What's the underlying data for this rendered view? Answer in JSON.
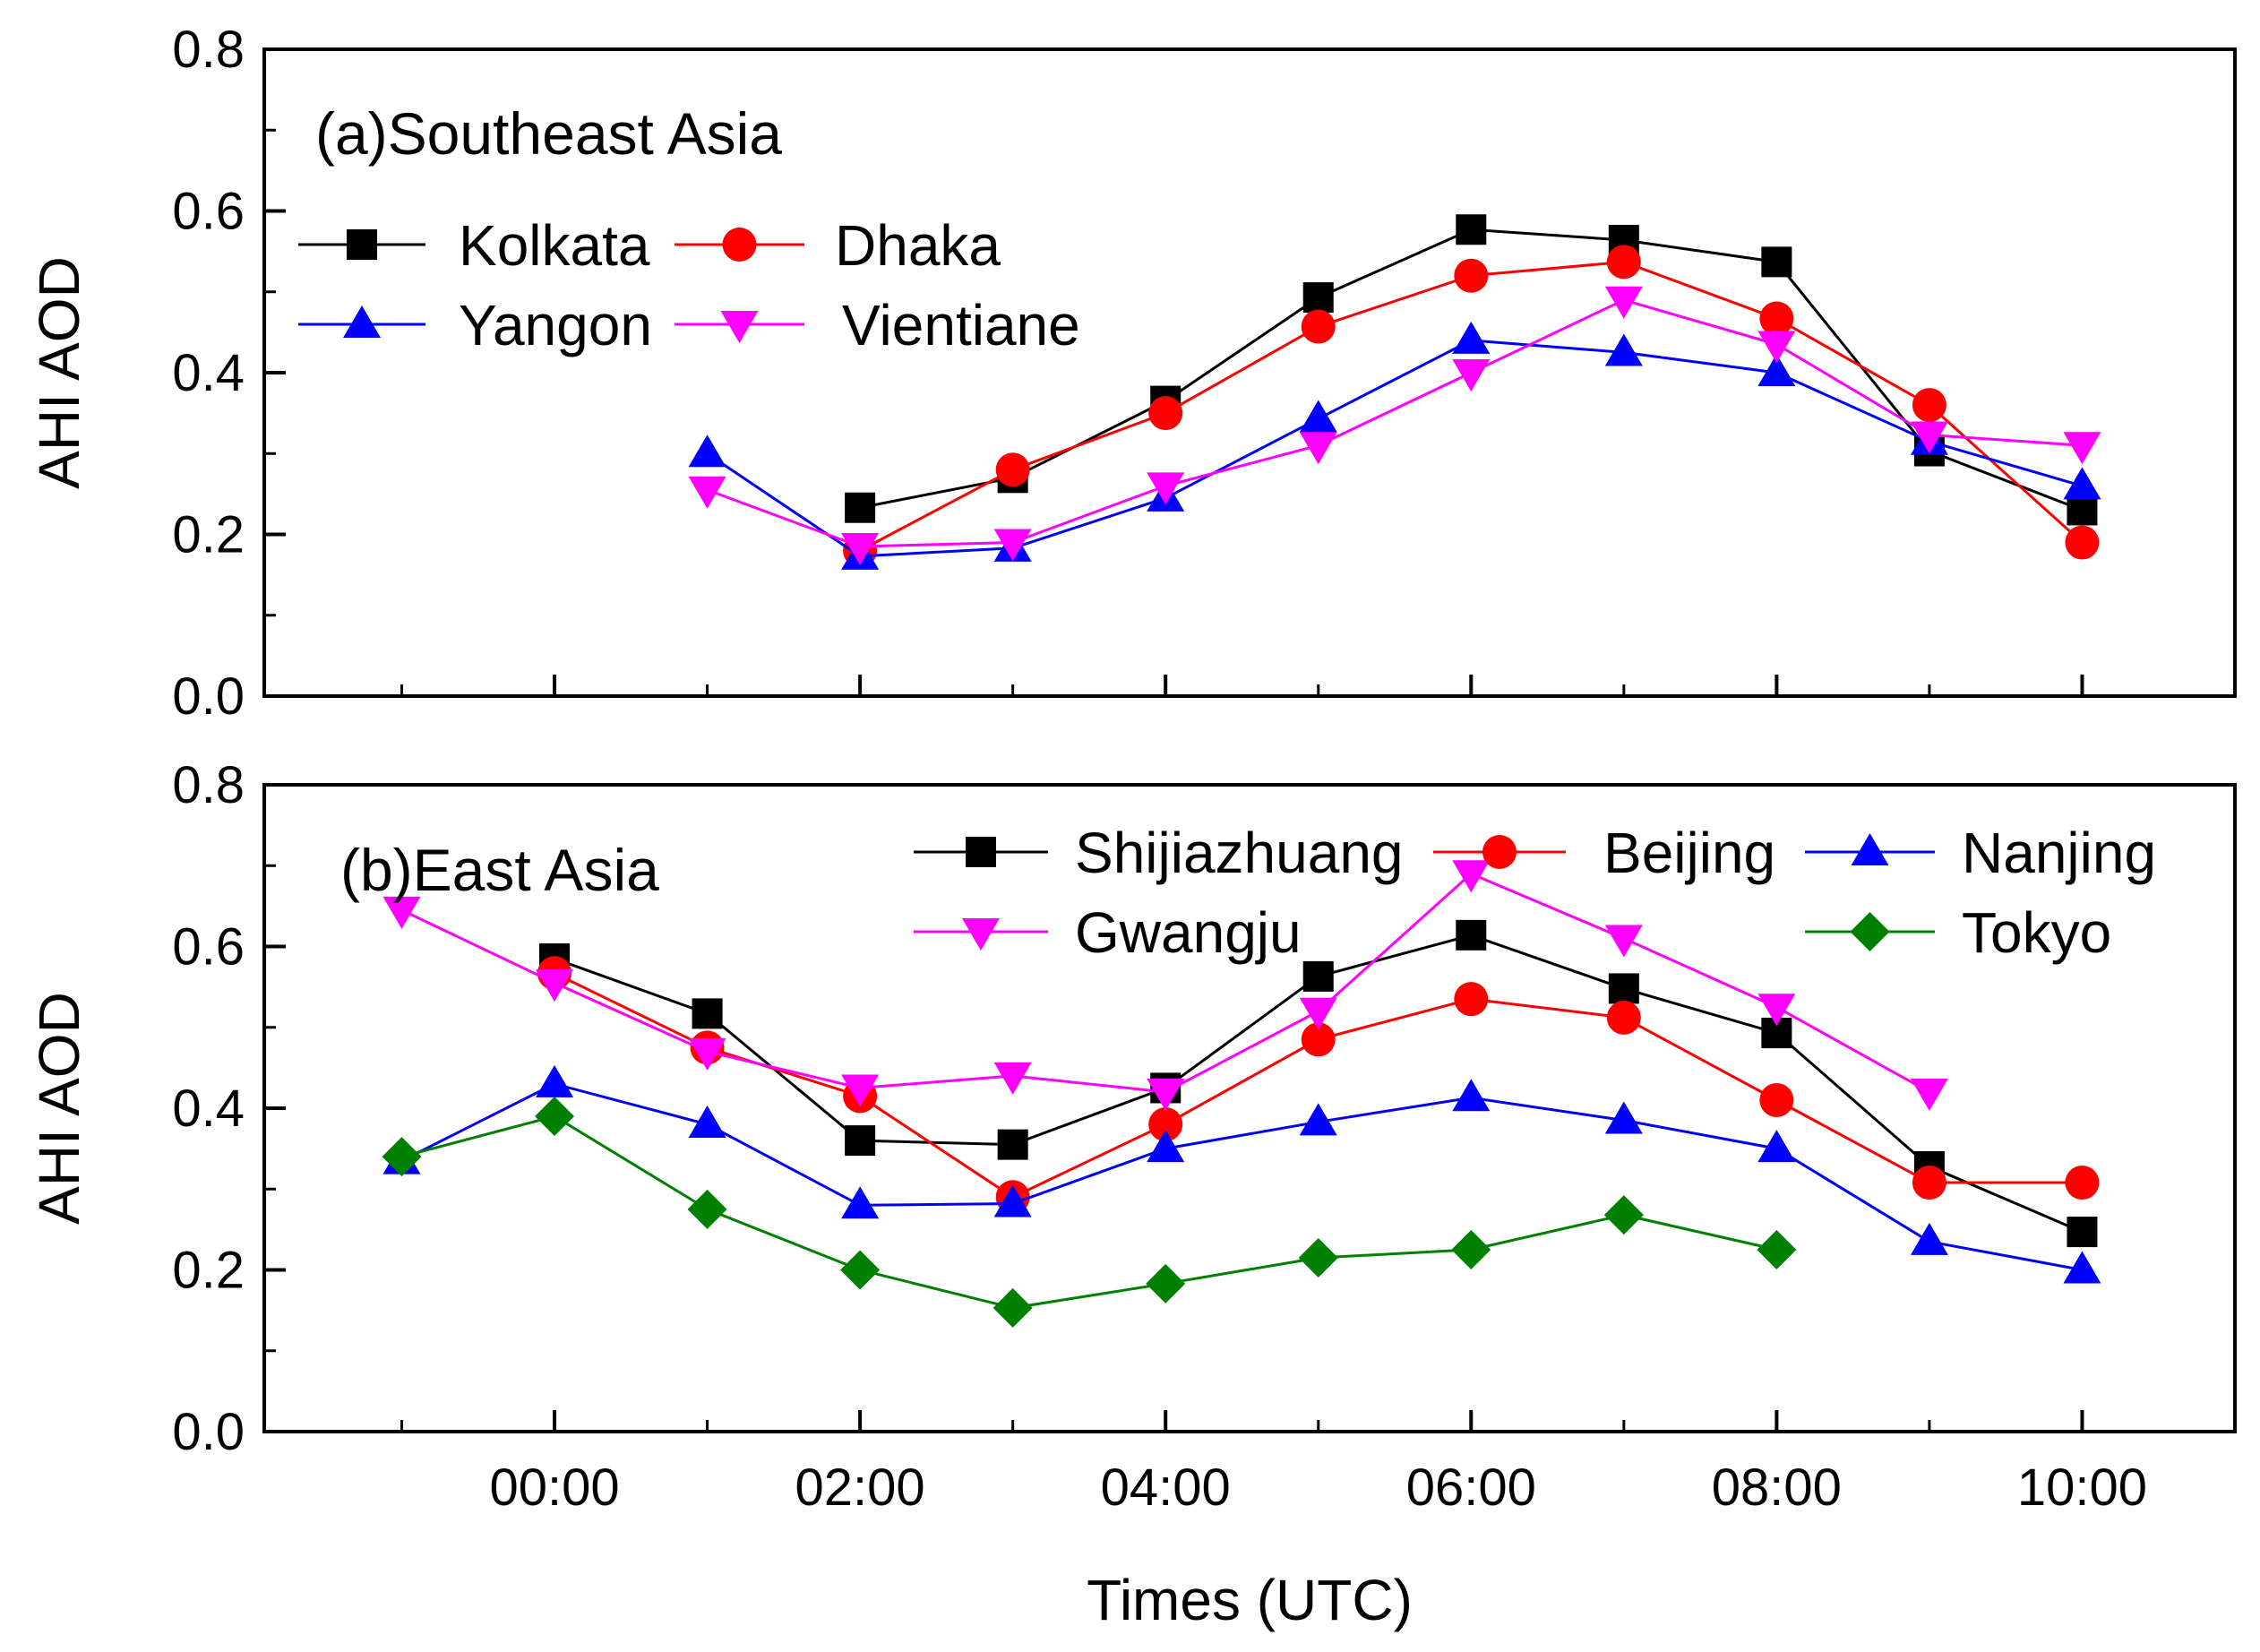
{
  "chart_data": [
    {
      "type": "line",
      "title": "(a)Southeast Asia",
      "xlabel": "",
      "ylabel": "AHI AOD",
      "xlim": [
        -1.9,
        11
      ],
      "ylim": [
        0.0,
        0.8
      ],
      "yticks": [
        0.0,
        0.2,
        0.4,
        0.6,
        0.8
      ],
      "ytick_labels": [
        "0.0",
        "0.2",
        "0.4",
        "0.6",
        "0.8"
      ],
      "legend_position": "top-left",
      "series": [
        {
          "name": "Kolkata",
          "color": "#000000",
          "marker": "square",
          "x": [
            2,
            3,
            4,
            5,
            6,
            7,
            8,
            9,
            10
          ],
          "values": [
            0.233,
            0.27,
            0.365,
            0.493,
            0.577,
            0.564,
            0.537,
            0.303,
            0.23
          ]
        },
        {
          "name": "Dhaka",
          "color": "#ff0000",
          "marker": "circle",
          "x": [
            2,
            3,
            4,
            5,
            6,
            7,
            8,
            9,
            10
          ],
          "values": [
            0.18,
            0.28,
            0.35,
            0.457,
            0.52,
            0.537,
            0.467,
            0.36,
            0.19
          ]
        },
        {
          "name": "Yangon",
          "color": "#0000ff",
          "marker": "triangle-up",
          "x": [
            1,
            2,
            3,
            4,
            5,
            6,
            7,
            8,
            9,
            10
          ],
          "values": [
            0.3,
            0.173,
            0.183,
            0.245,
            0.343,
            0.44,
            0.425,
            0.4,
            0.315,
            0.26
          ]
        },
        {
          "name": "Vientiane",
          "color": "#ff00ff",
          "marker": "triangle-down",
          "x": [
            1,
            2,
            3,
            4,
            5,
            6,
            7,
            8,
            9,
            10
          ],
          "values": [
            0.255,
            0.185,
            0.19,
            0.26,
            0.31,
            0.4,
            0.49,
            0.435,
            0.323,
            0.31
          ]
        }
      ]
    },
    {
      "type": "line",
      "title": "(b)East Asia",
      "xlabel": "Times (UTC)",
      "ylabel": "AHI AOD",
      "xlim": [
        -1.9,
        11
      ],
      "ylim": [
        0.0,
        0.8
      ],
      "yticks": [
        0.0,
        0.2,
        0.4,
        0.6,
        0.8
      ],
      "ytick_labels": [
        "0.0",
        "0.2",
        "0.4",
        "0.6",
        "0.8"
      ],
      "xticks": [
        0,
        2,
        4,
        6,
        8,
        10
      ],
      "xtick_labels": [
        "00:00",
        "02:00",
        "04:00",
        "06:00",
        "08:00",
        "10:00"
      ],
      "legend_position": "top-right",
      "series": [
        {
          "name": "Shijiazhuang",
          "color": "#000000",
          "marker": "square",
          "x": [
            0,
            1,
            2,
            3,
            4,
            5,
            6,
            7,
            8,
            9,
            10
          ],
          "values": [
            0.585,
            0.517,
            0.36,
            0.355,
            0.425,
            0.563,
            0.614,
            0.548,
            0.493,
            0.328,
            0.247
          ]
        },
        {
          "name": "Beijing",
          "color": "#ff0000",
          "marker": "circle",
          "x": [
            0,
            1,
            2,
            3,
            4,
            5,
            6,
            7,
            8,
            9,
            10
          ],
          "values": [
            0.567,
            0.475,
            0.415,
            0.29,
            0.38,
            0.485,
            0.535,
            0.512,
            0.41,
            0.308,
            0.308
          ]
        },
        {
          "name": "Nanjing",
          "color": "#0000ff",
          "marker": "triangle-up",
          "x": [
            -1,
            0,
            1,
            2,
            3,
            4,
            5,
            6,
            7,
            8,
            9,
            10
          ],
          "values": [
            0.335,
            0.43,
            0.38,
            0.28,
            0.282,
            0.35,
            0.383,
            0.413,
            0.385,
            0.35,
            0.235,
            0.2
          ]
        },
        {
          "name": "Gwangju",
          "color": "#ff00ff",
          "marker": "triangle-down",
          "x": [
            -1,
            0,
            1,
            2,
            3,
            4,
            5,
            6,
            7,
            8,
            9
          ],
          "values": [
            0.645,
            0.555,
            0.47,
            0.425,
            0.44,
            0.42,
            0.52,
            0.69,
            0.61,
            0.525,
            0.42
          ]
        },
        {
          "name": "Tokyo",
          "color": "#008000",
          "marker": "diamond",
          "x": [
            -1,
            0,
            1,
            2,
            3,
            4,
            5,
            6,
            7,
            8
          ],
          "values": [
            0.34,
            0.39,
            0.275,
            0.2,
            0.153,
            0.183,
            0.215,
            0.225,
            0.268,
            0.225
          ]
        }
      ]
    }
  ]
}
